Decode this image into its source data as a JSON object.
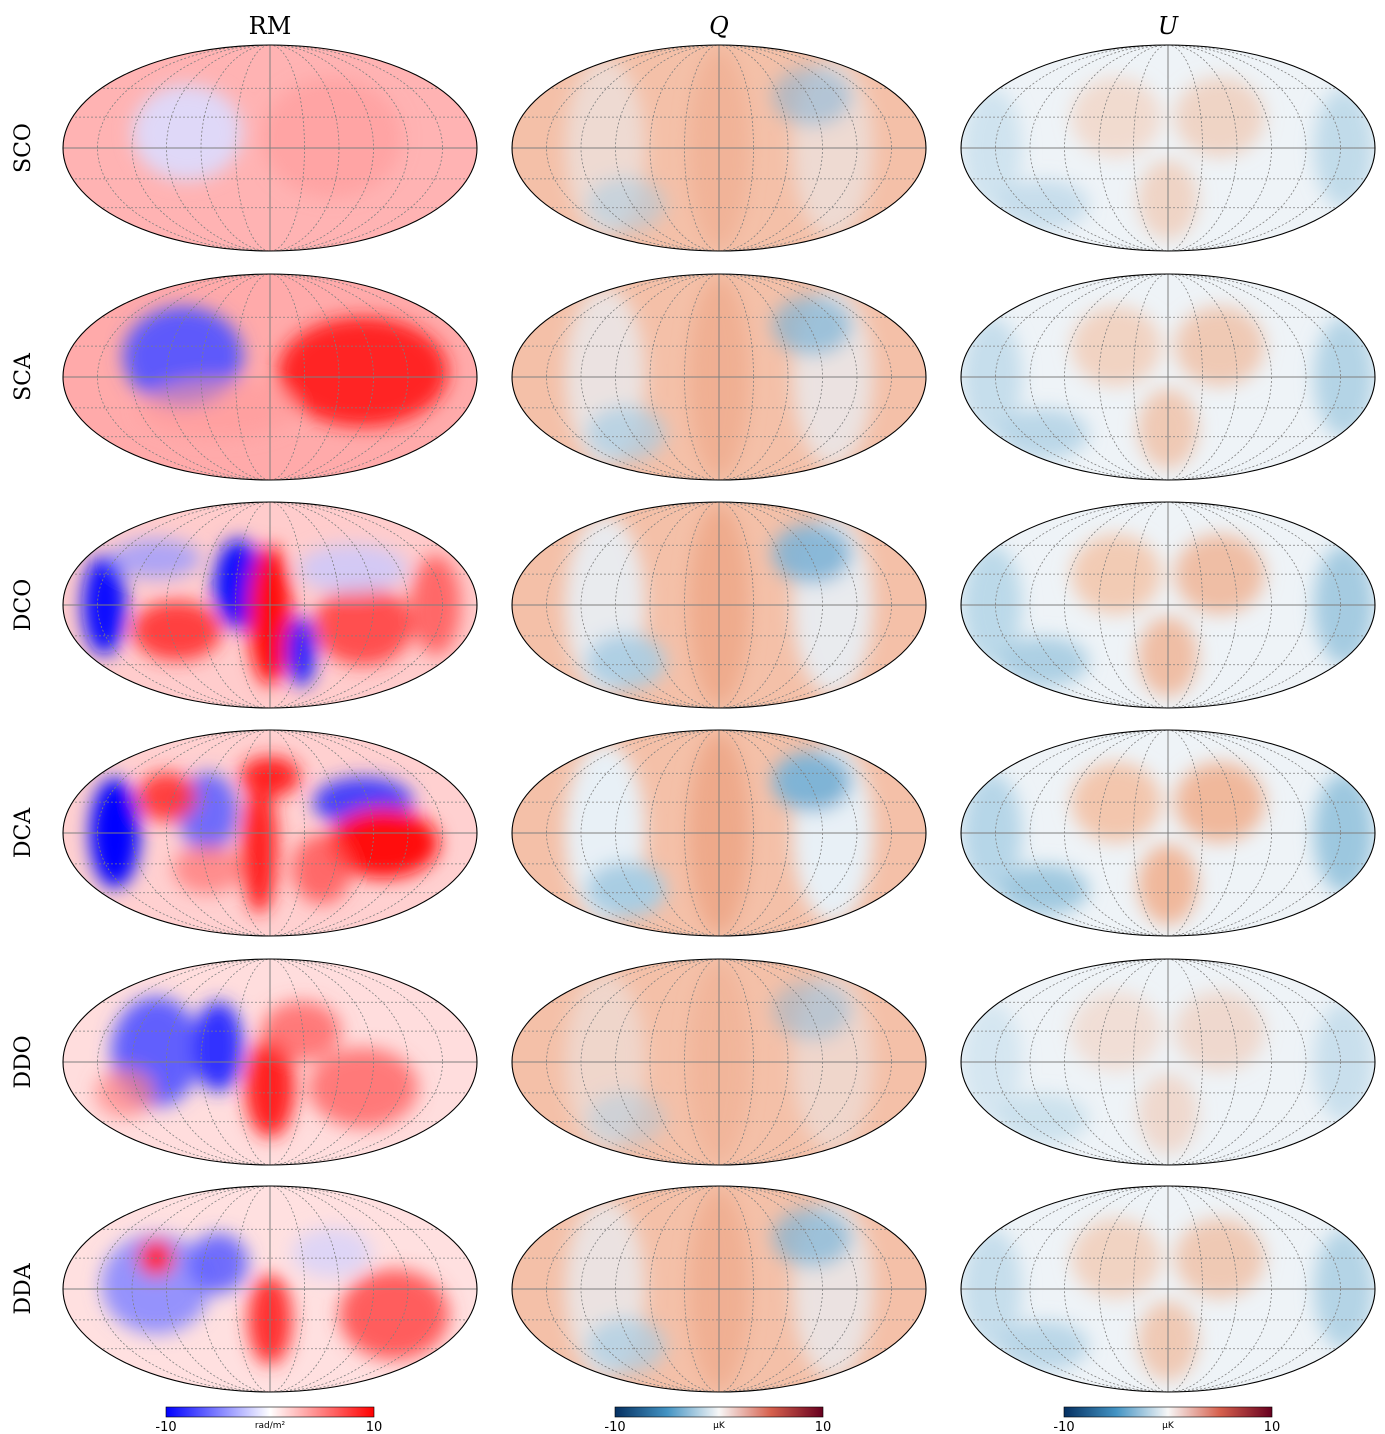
{
  "columns": [
    {
      "title": "RM",
      "italic": false,
      "colormap": "bwr"
    },
    {
      "title": "Q",
      "italic": true,
      "colormap": "RdBu_r"
    },
    {
      "title": "U",
      "italic": true,
      "colormap": "RdBu_r"
    }
  ],
  "rows": [
    "SCO",
    "SCA",
    "DCO",
    "DCA",
    "DDO",
    "DDA"
  ],
  "colorbars": [
    {
      "min_label": "-10",
      "max_label": "10",
      "unit": "rad/m²",
      "colormap": "bwr"
    },
    {
      "min_label": "-10",
      "max_label": "10",
      "unit": "μK",
      "colormap": "RdBu_r"
    },
    {
      "min_label": "-10",
      "max_label": "10",
      "unit": "μK",
      "colormap": "RdBu_r"
    }
  ],
  "projection": "mollweide",
  "graticule": true,
  "colors": {
    "bwr_neg": "#0000ff",
    "bwr_mid": "#ffffff",
    "bwr_pos": "#ff0000",
    "rdbu_neg_dark": "#053061",
    "rdbu_neg": "#4393c3",
    "rdbu_mid": "#f7f7f7",
    "rdbu_pos": "#d6604d",
    "rdbu_pos_dark": "#67001f",
    "outline": "#000000",
    "grid": "#7f7f7f"
  }
}
